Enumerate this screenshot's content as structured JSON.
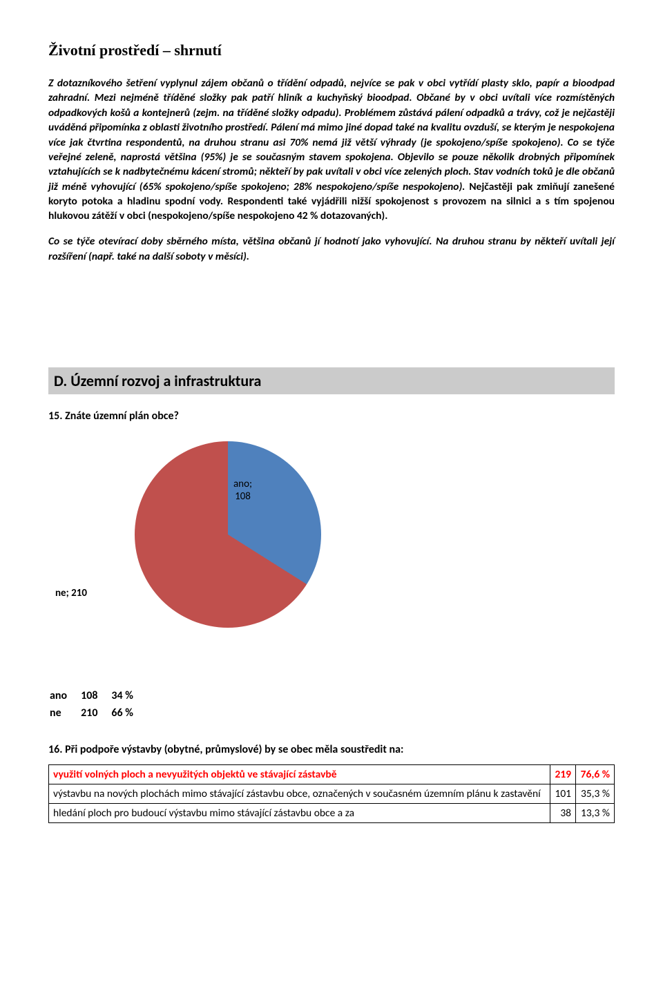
{
  "title": "Životní prostředí – shrnutí",
  "para1_lead": "Z dotazníkového šetření vyplynul zájem občanů o třídění odpadů, nejvíce se pak v obci vytřídí plasty sklo, papír a bioodpad zahradní. Mezi nejméně tříděné složky pak patří hliník a kuchyňský bioodpad. Občané by v obci uvítali více rozmístěných odpadkových košů a kontejnerů (zejm. na tříděné složky odpadu). Problémem zůstává pálení odpadků a trávy, což je nejčastěji uváděná připomínka z oblasti životního prostředí. Pálení má mimo jiné dopad také na kvalitu ovzduší, se kterým je nespokojena více jak čtvrtina respondentů, na druhou stranu asi 70% nemá již větší výhrady (je spokojeno/spíše spokojeno). Co se týče veřejné zeleně, naprostá většina (95%) je se současným stavem spokojena. Objevilo se pouze několik drobných připomínek vztahujících se k nadbytečnému kácení stromů; někteří by pak uvítali v obci více zelených ploch. Stav vodních toků je dle občanů již méně vyhovující (65% spokojeno/spíše spokojeno; 28% nespokojeno/spíše nespokojeno). ",
  "para1_bold_tail": "Nejčastěji pak zmiňují zanešené koryto potoka a hladinu spodní vody. Respondenti také vyjádřili nižší spokojenost s provozem na silnici a s tím spojenou hlukovou zátěží v obci (nespokojeno/spíše nespokojeno 42 % dotazovaných).",
  "para2": "Co se týče otevírací doby sběrného místa, většina občanů jí hodnotí jako vyhovující. Na druhou stranu by někteří uvítali její rozšíření (např. také na další soboty v měsíci).",
  "section_d": "D. Územní rozvoj a infrastruktura",
  "q15": "15. Znáte územní plán obce?",
  "pie": {
    "slices": [
      {
        "label": "ano",
        "value": 108,
        "color": "#4f81bd"
      },
      {
        "label": "ne",
        "value": 210,
        "color": "#c0504d"
      }
    ],
    "label_ano": "ano;\n108",
    "label_ne": "ne; 210",
    "ano_start_deg": 0,
    "ano_end_deg": 122.3,
    "background": "#ffffff"
  },
  "stats": {
    "rows": [
      {
        "label": "ano",
        "count": "108",
        "pct": "34 %"
      },
      {
        "label": "ne",
        "count": "210",
        "pct": "66 %"
      }
    ]
  },
  "q16": "16. Při podpoře výstavby (obytné, průmyslové) by se obec měla soustředit na:",
  "q16_rows": [
    {
      "text": "využití volných ploch a nevyužitých objektů ve stávající zástavbě",
      "count": "219",
      "pct": "76,6 %",
      "highlight": true
    },
    {
      "text": "výstavbu na nových plochách mimo stávající zástavbu obce, označených v současném územním plánu k zastavění",
      "count": "101",
      "pct": "35,3 %",
      "highlight": false
    },
    {
      "text": "hledání ploch pro budoucí výstavbu mimo stávající zástavbu obce a za",
      "count": "38",
      "pct": "13,3 %",
      "highlight": false
    }
  ]
}
